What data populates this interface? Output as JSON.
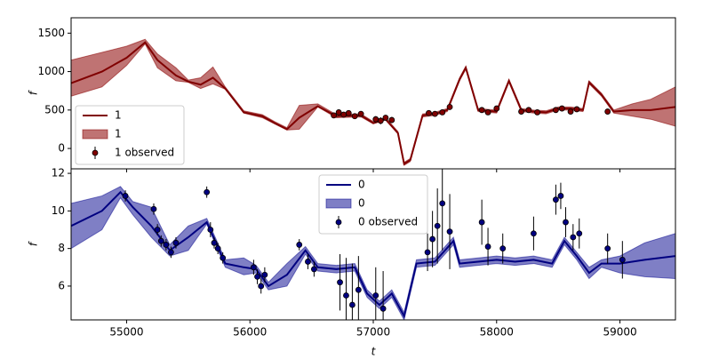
{
  "chart_data": [
    {
      "type": "line",
      "ylabel": "f",
      "xlim": [
        54550,
        59450
      ],
      "ylim": [
        -265,
        1700
      ],
      "xticks": [
        55000,
        56000,
        57000,
        58000,
        59000
      ],
      "yticks": [
        0,
        500,
        1000,
        1500
      ],
      "show_xtick_labels": false,
      "legend": "lower left",
      "x": [
        54550,
        54800,
        55000,
        55150,
        55250,
        55400,
        55500,
        55600,
        55700,
        55800,
        55950,
        56100,
        56200,
        56300,
        56400,
        56550,
        56700,
        56900,
        57000,
        57100,
        57200,
        57250,
        57300,
        57400,
        57500,
        57600,
        57700,
        57750,
        57850,
        58000,
        58100,
        58200,
        58300,
        58400,
        58500,
        58600,
        58700,
        58750,
        58850,
        58950,
        59100,
        59250,
        59450
      ],
      "series": [
        {
          "name": "1",
          "type": "line",
          "color": "#800000",
          "values": [
            850,
            1000,
            1180,
            1380,
            1150,
            950,
            870,
            830,
            920,
            780,
            470,
            420,
            330,
            250,
            400,
            550,
            420,
            430,
            330,
            380,
            200,
            -200,
            -150,
            430,
            450,
            500,
            900,
            1050,
            500,
            480,
            880,
            500,
            480,
            470,
            520,
            520,
            500,
            860,
            700,
            480,
            500,
            500,
            540
          ]
        },
        {
          "name": "1",
          "type": "band",
          "color": "#8b0000",
          "alpha": 0.55,
          "lower": [
            680,
            800,
            1080,
            1360,
            1050,
            880,
            860,
            780,
            840,
            770,
            460,
            400,
            320,
            240,
            250,
            540,
            400,
            410,
            320,
            370,
            190,
            -220,
            -170,
            410,
            430,
            480,
            880,
            1030,
            480,
            460,
            860,
            480,
            460,
            450,
            500,
            500,
            480,
            840,
            680,
            460,
            420,
            380,
            290
          ],
          "upper": [
            1150,
            1250,
            1330,
            1420,
            1230,
            1050,
            890,
            920,
            1060,
            800,
            490,
            440,
            350,
            270,
            560,
            580,
            440,
            450,
            350,
            400,
            220,
            -180,
            -130,
            450,
            470,
            520,
            920,
            1070,
            520,
            500,
            900,
            520,
            500,
            490,
            540,
            540,
            520,
            880,
            720,
            500,
            580,
            640,
            800
          ]
        },
        {
          "name": "1 observed",
          "type": "errorbar",
          "color": "#800000",
          "x": [
            56680,
            56720,
            56760,
            56800,
            56850,
            56900,
            57020,
            57060,
            57100,
            57150,
            57450,
            57500,
            57560,
            57620,
            57880,
            57930,
            58000,
            58200,
            58260,
            58330,
            58480,
            58530,
            58600,
            58650,
            58900
          ],
          "values": [
            430,
            470,
            440,
            460,
            420,
            450,
            380,
            360,
            400,
            370,
            460,
            450,
            470,
            540,
            500,
            470,
            520,
            480,
            500,
            470,
            500,
            520,
            480,
            510,
            480
          ],
          "errors": [
            30,
            40,
            25,
            35,
            30,
            30,
            40,
            45,
            35,
            40,
            30,
            25,
            35,
            40,
            30,
            30,
            35,
            30,
            25,
            30,
            35,
            30,
            30,
            25,
            30
          ]
        }
      ]
    },
    {
      "type": "line",
      "ylabel": "f",
      "xlabel": "t",
      "xlim": [
        54550,
        59450
      ],
      "ylim": [
        4.2,
        12.24
      ],
      "xticks": [
        55000,
        56000,
        57000,
        58000,
        59000
      ],
      "yticks": [
        6,
        8,
        10,
        12
      ],
      "show_xtick_labels": true,
      "legend": "upper center",
      "x": [
        54550,
        54800,
        54950,
        55050,
        55200,
        55350,
        55500,
        55650,
        55800,
        55950,
        56050,
        56150,
        56300,
        56450,
        56550,
        56700,
        56850,
        56950,
        57050,
        57150,
        57250,
        57350,
        57500,
        57650,
        57700,
        57850,
        58000,
        58150,
        58300,
        58450,
        58550,
        58650,
        58750,
        58850,
        59000,
        59200,
        59450
      ],
      "series": [
        {
          "name": "0",
          "type": "line",
          "color": "#000080",
          "values": [
            9.2,
            10.0,
            11.0,
            10.2,
            9.2,
            7.9,
            8.6,
            9.4,
            7.2,
            7.0,
            6.9,
            6.0,
            6.6,
            7.9,
            7.0,
            6.9,
            7.0,
            5.6,
            5.0,
            5.6,
            4.4,
            7.2,
            7.3,
            8.4,
            7.2,
            7.3,
            7.4,
            7.3,
            7.4,
            7.2,
            8.4,
            7.6,
            6.7,
            7.2,
            7.2,
            7.4,
            7.6
          ]
        },
        {
          "name": "0",
          "type": "band",
          "color": "#00008b",
          "alpha": 0.5,
          "lower": [
            8.0,
            9.0,
            10.7,
            9.8,
            8.6,
            7.6,
            7.9,
            9.3,
            7.0,
            6.6,
            6.7,
            5.8,
            6.0,
            7.7,
            6.8,
            6.7,
            6.8,
            5.4,
            4.8,
            5.4,
            4.2,
            7.0,
            7.1,
            8.2,
            7.0,
            7.1,
            7.2,
            7.1,
            7.2,
            7.0,
            8.2,
            7.4,
            6.4,
            7.0,
            6.7,
            6.5,
            6.4
          ],
          "upper": [
            10.4,
            10.8,
            11.3,
            10.5,
            10.2,
            8.2,
            9.2,
            9.6,
            7.4,
            7.5,
            7.1,
            6.2,
            7.2,
            8.1,
            7.2,
            7.1,
            7.2,
            5.8,
            5.2,
            5.8,
            4.6,
            7.4,
            7.5,
            8.6,
            7.4,
            7.5,
            7.6,
            7.5,
            7.6,
            7.4,
            8.6,
            7.8,
            7.0,
            7.4,
            7.6,
            8.3,
            8.8
          ]
        },
        {
          "name": "0 observed",
          "type": "errorbar",
          "color": "#000080",
          "x": [
            54990,
            55220,
            55250,
            55280,
            55320,
            55360,
            55400,
            55650,
            55680,
            55710,
            55740,
            55780,
            56030,
            56060,
            56090,
            56120,
            56400,
            56470,
            56520,
            56730,
            56780,
            56830,
            56880,
            57020,
            57080,
            57440,
            57480,
            57520,
            57560,
            57620,
            57880,
            57930,
            58050,
            58300,
            58480,
            58520,
            58560,
            58620,
            58670,
            58900,
            59020
          ],
          "values": [
            10.8,
            10.1,
            9.0,
            8.4,
            8.2,
            7.8,
            8.3,
            11.0,
            9.0,
            8.3,
            8.0,
            7.5,
            7.0,
            6.5,
            6.0,
            6.6,
            8.2,
            7.3,
            6.9,
            6.2,
            5.5,
            5.0,
            5.8,
            5.5,
            4.8,
            7.8,
            8.5,
            9.2,
            10.4,
            8.9,
            9.4,
            8.1,
            8.0,
            8.8,
            10.6,
            10.8,
            9.4,
            8.6,
            8.8,
            8.0,
            7.4
          ],
          "errors": [
            0.3,
            0.3,
            0.3,
            0.3,
            0.3,
            0.3,
            0.3,
            0.3,
            0.4,
            0.3,
            0.3,
            0.3,
            0.4,
            0.4,
            0.4,
            0.4,
            0.3,
            0.4,
            0.4,
            1.5,
            2.0,
            2.2,
            1.8,
            1.5,
            2.0,
            1.0,
            1.5,
            2.0,
            2.5,
            2.0,
            1.2,
            1.0,
            0.8,
            0.9,
            0.8,
            0.7,
            0.8,
            0.7,
            0.8,
            0.8,
            1.0
          ]
        }
      ]
    }
  ]
}
